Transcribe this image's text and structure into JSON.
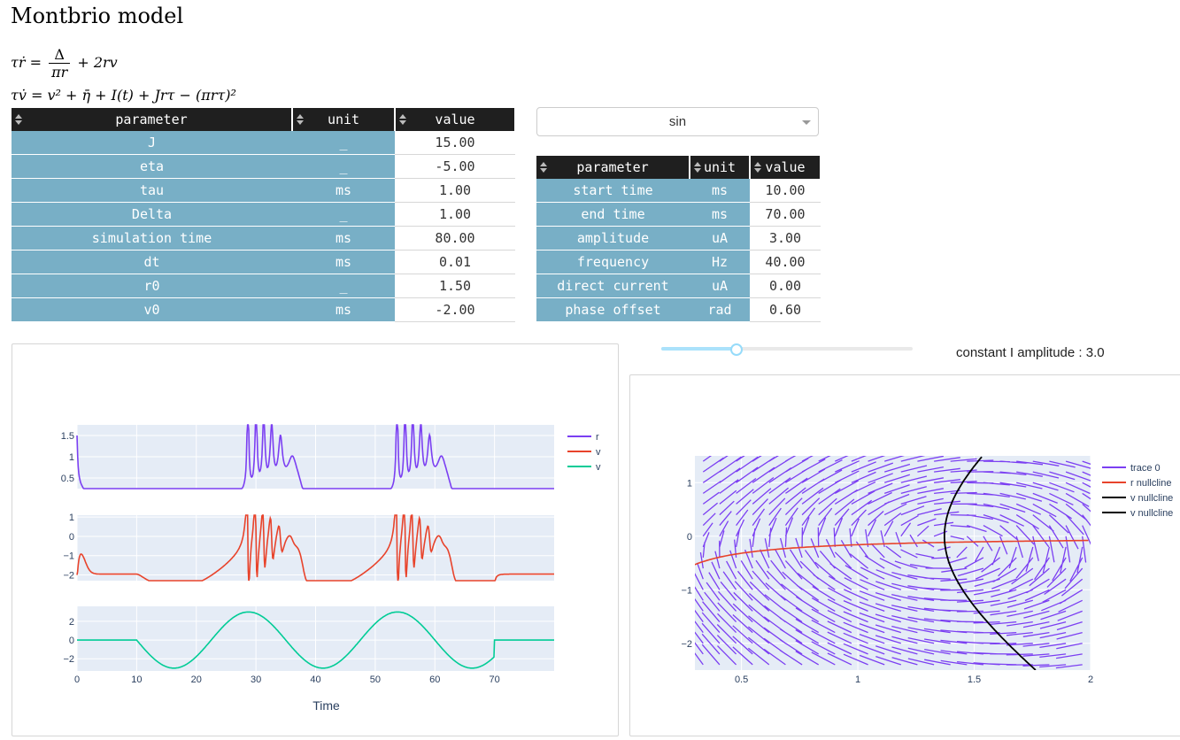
{
  "title": "Montbrio model",
  "equations": {
    "eq1_lhs": "τṙ =",
    "eq1_num": "Δ",
    "eq1_den": "πr",
    "eq1_rhs": "+ 2rv",
    "eq2": "τv̇ = v² + η̄ + I(t) + Jrτ − (πrτ)²"
  },
  "main_table": {
    "headers": [
      "parameter",
      "unit",
      "value"
    ],
    "rows": [
      [
        "J",
        "_",
        "15.00"
      ],
      [
        "eta",
        "_",
        "-5.00"
      ],
      [
        "tau",
        "ms",
        "1.00"
      ],
      [
        "Delta",
        "_",
        "1.00"
      ],
      [
        "simulation time",
        "ms",
        "80.00"
      ],
      [
        "dt",
        "ms",
        "0.01"
      ],
      [
        "r0",
        "_",
        "1.50"
      ],
      [
        "v0",
        "ms",
        "-2.00"
      ]
    ]
  },
  "input_dropdown": {
    "selected": "sin"
  },
  "input_table": {
    "headers": [
      "parameter",
      "unit",
      "value"
    ],
    "rows": [
      [
        "start time",
        "ms",
        "10.00"
      ],
      [
        "end time",
        "ms",
        "70.00"
      ],
      [
        "amplitude",
        "uA",
        "3.00"
      ],
      [
        "frequency",
        "Hz",
        "40.00"
      ],
      [
        "direct current",
        "uA",
        "0.00"
      ],
      [
        "phase offset",
        "rad",
        "0.60"
      ]
    ]
  },
  "slider": {
    "label": "constant I amplitude : 3.0",
    "fraction": 0.3
  },
  "chart_data": [
    {
      "type": "line",
      "xlabel": "Time",
      "xlim": [
        0,
        80
      ],
      "x_ticks": [
        0,
        10,
        20,
        30,
        40,
        50,
        60,
        70
      ],
      "legend": [
        "r",
        "v",
        "v"
      ],
      "colors": [
        "#7b3ff2",
        "#e8432b",
        "#00cc96"
      ],
      "subplots": [
        {
          "series": "r",
          "ylim": [
            0.25,
            1.75
          ],
          "y_ticks": [
            "0.5",
            "1",
            "1.5"
          ]
        },
        {
          "series": "v",
          "ylim": [
            -2.3,
            1.1
          ],
          "y_ticks": [
            "-2",
            "-1",
            "0",
            "1"
          ]
        },
        {
          "series": "I",
          "ylim": [
            -3.3,
            3.6
          ],
          "y_ticks": [
            "-2",
            "0",
            "2"
          ]
        }
      ],
      "legend_placement": "top-right"
    },
    {
      "type": "line",
      "xlim": [
        0.3,
        2
      ],
      "ylim": [
        -2.5,
        1.5
      ],
      "x_ticks": [
        "0.5",
        "1",
        "1.5",
        "2"
      ],
      "y_ticks": [
        "-2",
        "-1",
        "0",
        "1"
      ],
      "legend": [
        "trace 0",
        "r nullcline",
        "v nullcline",
        "v nullcline"
      ],
      "colors": [
        "#7b3ff2",
        "#e8432b",
        "#000000",
        "#000000"
      ],
      "legend_placement": "top-right"
    }
  ]
}
